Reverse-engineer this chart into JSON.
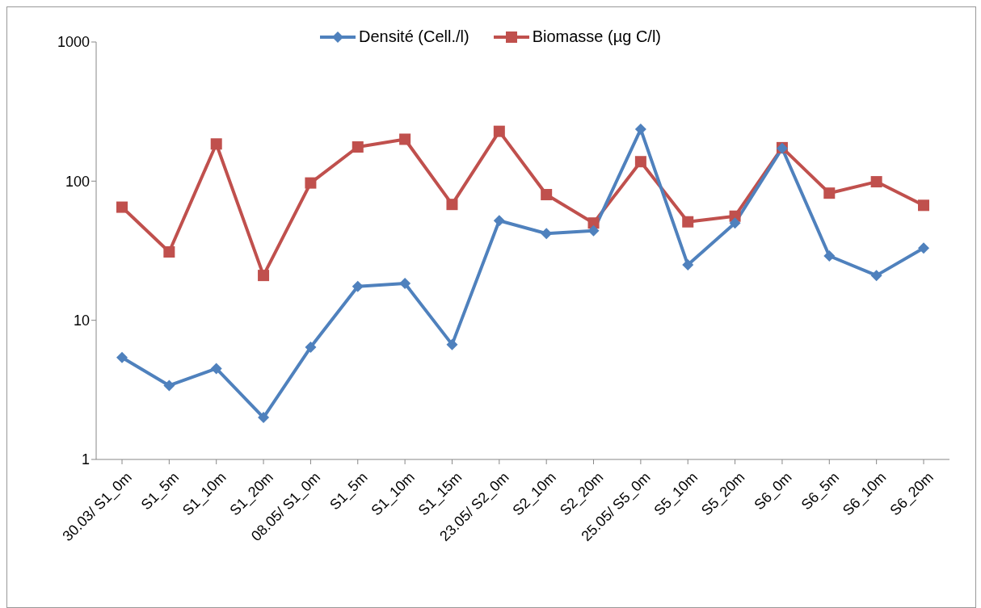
{
  "chart_data": {
    "type": "line",
    "categories": [
      "30.03/ S1_0m",
      "S1_5m",
      "S1_10m",
      "S1_20m",
      "08.05/ S1_0m",
      "S1_5m",
      "S1_10m",
      "S1_15m",
      "23.05/ S2_0m",
      "S2_10m",
      "S2_20m",
      "25.05/ S5_0m",
      "S5_10m",
      "S5_20m",
      "S6_0m",
      "S6_5m",
      "S6_10m",
      "S6_20m"
    ],
    "series": [
      {
        "name": "Densité (Cell./l)",
        "color": "#4f81bd",
        "marker": "diamond",
        "values": [
          5.4,
          3.4,
          4.5,
          2.0,
          6.4,
          17.5,
          18.4,
          6.7,
          52,
          42,
          44,
          236,
          25,
          50,
          172,
          29,
          21,
          33
        ]
      },
      {
        "name": "Biomasse (µg C/l)",
        "color": "#c0504d",
        "marker": "square",
        "values": [
          65,
          31,
          185,
          21,
          97,
          176,
          200,
          68,
          228,
          80,
          50,
          138,
          51,
          56,
          174,
          82,
          99,
          67
        ]
      }
    ],
    "log": "y",
    "ylim": [
      1,
      1000
    ],
    "yticks": [
      1,
      10,
      100,
      1000
    ],
    "grid": false,
    "legend": "top",
    "line_style": "solid"
  }
}
